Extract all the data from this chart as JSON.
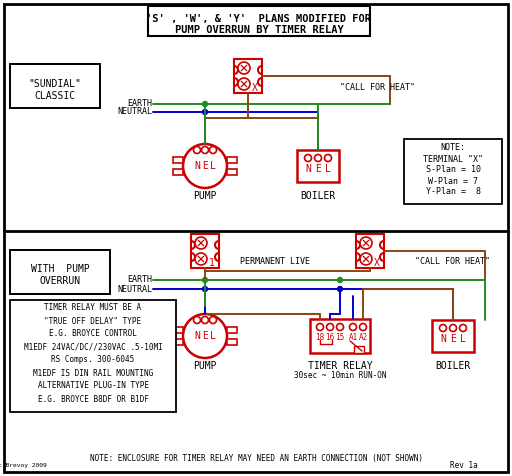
{
  "title_line1": "'S' , 'W', & 'Y'  PLANS MODIFIED FOR",
  "title_line2": "PUMP OVERRUN BY TIMER RELAY",
  "bg_color": "#ffffff",
  "red": "#cc0000",
  "green": "#228B22",
  "blue": "#0000cc",
  "brown": "#8B4513",
  "black": "#000000",
  "bottom_note": "NOTE: ENCLOSURE FOR TIMER RELAY MAY NEED AN EARTH CONNECTION (NOT SHOWN)",
  "footer": "Rev 1a",
  "copyright": "c Brevoy 2009",
  "timer_lines": [
    "TIMER RELAY MUST BE A",
    "\"TRUE OFF DELAY\" TYPE",
    "E.G. BROYCE CONTROL",
    "M1EDF 24VAC/DC//230VAC .5-10MI",
    "RS Comps. 300-6045",
    "M1EDF IS DIN RAIL MOUNTING",
    "ALTERNATIVE PLUG-IN TYPE",
    "E.G. BROYCE B8DF OR B1DF"
  ],
  "note_lines": [
    "NOTE:",
    "TERMINAL \"X\"",
    "S-Plan = 10",
    "W-Plan = 7",
    "Y-Plan =  8"
  ]
}
